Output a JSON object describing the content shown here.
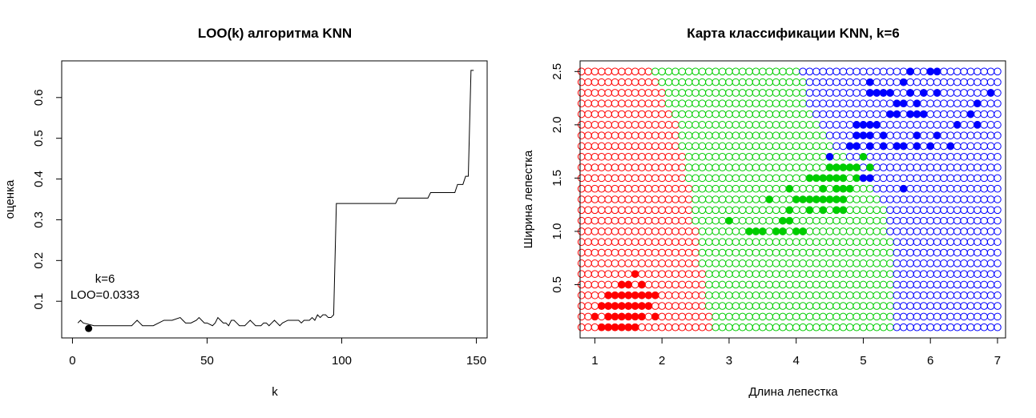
{
  "chart_data": [
    {
      "type": "line",
      "title": "LOO(k) алгоритма KNN",
      "xlabel": "k",
      "ylabel": "оценка",
      "xlim": [
        -4,
        154
      ],
      "ylim": [
        0.01,
        0.69
      ],
      "xticks": [
        0,
        50,
        100,
        150
      ],
      "xtick_labels": [
        "0",
        "50",
        "100",
        "150"
      ],
      "yticks": [
        0.1,
        0.2,
        0.3,
        0.4,
        0.5,
        0.6
      ],
      "ytick_labels": [
        "0.1",
        "0.2",
        "0.3",
        "0.4",
        "0.5",
        "0.6"
      ],
      "grid": false,
      "series": [
        {
          "x": [
            2,
            3,
            4,
            8,
            20,
            22,
            23,
            24,
            25,
            26,
            27,
            30,
            34,
            35,
            36,
            37,
            40,
            41,
            42,
            44,
            46,
            47,
            48,
            49,
            50,
            52,
            53,
            54,
            55,
            56,
            57,
            58,
            59,
            60,
            61,
            62,
            64,
            65,
            66,
            67,
            68,
            70,
            71,
            72,
            73,
            74,
            75,
            76,
            77,
            78,
            80,
            82,
            84,
            85,
            86,
            88,
            89,
            90,
            91,
            92,
            93,
            94,
            95,
            96,
            97,
            98,
            110,
            120,
            121,
            132,
            133,
            142,
            143,
            145,
            146,
            147,
            148,
            149
          ],
          "y": [
            0.0467,
            0.0533,
            0.0467,
            0.04,
            0.04,
            0.04,
            0.0467,
            0.0533,
            0.0467,
            0.04,
            0.04,
            0.04,
            0.0533,
            0.0533,
            0.0533,
            0.0533,
            0.06,
            0.0533,
            0.0467,
            0.0467,
            0.0533,
            0.06,
            0.0533,
            0.0467,
            0.0467,
            0.04,
            0.0467,
            0.06,
            0.0533,
            0.0467,
            0.0467,
            0.04,
            0.0533,
            0.0533,
            0.0467,
            0.04,
            0.04,
            0.0467,
            0.0533,
            0.0467,
            0.04,
            0.04,
            0.0467,
            0.0467,
            0.04,
            0.0467,
            0.0533,
            0.0467,
            0.04,
            0.0467,
            0.0533,
            0.0533,
            0.0533,
            0.0467,
            0.0533,
            0.0533,
            0.06,
            0.0533,
            0.0667,
            0.06,
            0.0667,
            0.0667,
            0.06,
            0.06,
            0.0667,
            0.34,
            0.34,
            0.34,
            0.3533,
            0.3533,
            0.3667,
            0.3667,
            0.3867,
            0.3867,
            0.4067,
            0.4067,
            0.6667,
            0.6667
          ]
        }
      ],
      "marker": {
        "x": 6,
        "y": 0.0333
      },
      "annotation": [
        "k=6",
        "LOO=0.0333"
      ]
    },
    {
      "type": "scatter",
      "title": "Карта классификации KNN, k=6",
      "xlabel": "Длина лепестка",
      "ylabel": "Ширина лепестка",
      "xlim": [
        0.78,
        7.12
      ],
      "ylim": [
        -0.0,
        2.6
      ],
      "xticks": [
        1,
        2,
        3,
        4,
        5,
        6,
        7
      ],
      "xtick_labels": [
        "1",
        "2",
        "3",
        "4",
        "5",
        "6",
        "7"
      ],
      "yticks": [
        0.5,
        1.0,
        1.5,
        2.0,
        2.5
      ],
      "ytick_labels": [
        "0.5",
        "1.0",
        "1.5",
        "2.0",
        "2.5"
      ],
      "grid": false,
      "legend": "none",
      "colors": {
        "setosa": "#ff0000",
        "versicolor": "#00cd00",
        "virginica": "#0000ff"
      },
      "classification_grid": {
        "x_start": 0.8,
        "x_step": 0.1,
        "x_count": 63,
        "y_start": 0.1,
        "y_step": 0.1,
        "y_count": 25,
        "setosa_until_x": [
          2.7,
          2.7,
          2.6,
          2.6,
          2.6,
          2.6,
          2.5,
          2.5,
          2.5,
          2.5,
          2.4,
          2.4,
          2.4,
          2.4,
          2.3,
          2.3,
          2.3,
          2.2,
          2.2,
          2.2,
          2.1,
          2.0,
          2.0,
          1.9,
          1.8
        ],
        "versicolor_until_x": [
          5.4,
          5.4,
          5.4,
          5.4,
          5.4,
          5.4,
          5.4,
          5.4,
          5.4,
          5.3,
          5.3,
          5.3,
          5.2,
          5.1,
          5.0,
          4.9,
          4.7,
          4.5,
          4.4,
          4.3,
          4.2,
          4.1,
          4.1,
          4.1,
          4.0
        ]
      },
      "observations": {
        "setosa": [
          [
            1.4,
            0.2
          ],
          [
            1.3,
            0.2
          ],
          [
            1.5,
            0.2
          ],
          [
            1.7,
            0.4
          ],
          [
            1.4,
            0.3
          ],
          [
            1.5,
            0.1
          ],
          [
            1.1,
            0.1
          ],
          [
            1.2,
            0.2
          ],
          [
            1.6,
            0.2
          ],
          [
            1.9,
            0.4
          ],
          [
            1.0,
            0.2
          ],
          [
            1.7,
            0.5
          ],
          [
            1.6,
            0.6
          ],
          [
            1.4,
            0.1
          ],
          [
            1.6,
            0.4
          ],
          [
            1.5,
            0.4
          ],
          [
            1.3,
            0.3
          ],
          [
            1.3,
            0.4
          ],
          [
            1.9,
            0.2
          ],
          [
            1.6,
            0.3
          ],
          [
            1.2,
            0.3
          ],
          [
            1.5,
            0.3
          ],
          [
            1.4,
            0.4
          ],
          [
            1.7,
            0.3
          ],
          [
            1.4,
            0.5
          ],
          [
            1.3,
            0.1
          ],
          [
            1.6,
            0.1
          ],
          [
            1.5,
            0.5
          ],
          [
            1.2,
            0.4
          ],
          [
            1.7,
            0.2
          ],
          [
            1.8,
            0.3
          ],
          [
            1.1,
            0.3
          ],
          [
            1.2,
            0.1
          ],
          [
            1.8,
            0.4
          ]
        ],
        "versicolor": [
          [
            4.7,
            1.4
          ],
          [
            4.5,
            1.5
          ],
          [
            4.9,
            1.5
          ],
          [
            4.0,
            1.3
          ],
          [
            4.6,
            1.5
          ],
          [
            3.3,
            1.0
          ],
          [
            4.6,
            1.3
          ],
          [
            3.9,
            1.4
          ],
          [
            3.5,
            1.0
          ],
          [
            4.2,
            1.5
          ],
          [
            4.0,
            1.0
          ],
          [
            4.7,
            1.6
          ],
          [
            3.6,
            1.3
          ],
          [
            4.4,
            1.4
          ],
          [
            4.5,
            1.3
          ],
          [
            4.1,
            1.0
          ],
          [
            4.8,
            1.8
          ],
          [
            4.0,
            1.3
          ],
          [
            4.9,
            1.6
          ],
          [
            4.3,
            1.3
          ],
          [
            4.4,
            1.3
          ],
          [
            4.8,
            1.4
          ],
          [
            5.0,
            1.7
          ],
          [
            3.8,
            1.1
          ],
          [
            3.7,
            1.0
          ],
          [
            3.9,
            1.2
          ],
          [
            5.1,
            1.6
          ],
          [
            4.5,
            1.6
          ],
          [
            4.1,
            1.3
          ],
          [
            4.2,
            1.3
          ],
          [
            4.4,
            1.2
          ],
          [
            4.6,
            1.4
          ],
          [
            3.0,
            1.1
          ],
          [
            4.2,
            1.2
          ],
          [
            4.3,
            1.3
          ],
          [
            3.9,
            1.1
          ],
          [
            3.8,
            1.0
          ],
          [
            4.1,
            1.0
          ],
          [
            3.4,
            1.0
          ],
          [
            4.6,
            1.6
          ],
          [
            4.7,
            1.5
          ],
          [
            4.4,
            1.5
          ],
          [
            4.8,
            1.6
          ],
          [
            4.7,
            1.3
          ],
          [
            4.3,
            1.5
          ],
          [
            4.6,
            1.2
          ],
          [
            4.7,
            1.2
          ]
        ],
        "virginica": [
          [
            6.0,
            2.5
          ],
          [
            5.1,
            1.9
          ],
          [
            5.9,
            2.1
          ],
          [
            5.6,
            1.8
          ],
          [
            5.8,
            2.2
          ],
          [
            6.6,
            2.1
          ],
          [
            4.5,
            1.7
          ],
          [
            6.3,
            1.8
          ],
          [
            5.8,
            1.8
          ],
          [
            6.1,
            2.5
          ],
          [
            5.1,
            2.0
          ],
          [
            5.3,
            1.9
          ],
          [
            5.5,
            2.1
          ],
          [
            5.0,
            2.0
          ],
          [
            5.1,
            2.4
          ],
          [
            5.3,
            2.3
          ],
          [
            5.5,
            1.8
          ],
          [
            6.7,
            2.2
          ],
          [
            6.9,
            2.3
          ],
          [
            5.0,
            1.5
          ],
          [
            5.7,
            2.3
          ],
          [
            4.9,
            2.0
          ],
          [
            6.7,
            2.0
          ],
          [
            4.9,
            1.8
          ],
          [
            5.7,
            2.1
          ],
          [
            6.0,
            1.8
          ],
          [
            4.8,
            1.8
          ],
          [
            6.1,
            1.9
          ],
          [
            6.4,
            2.0
          ],
          [
            5.6,
            2.2
          ],
          [
            5.1,
            1.5
          ],
          [
            5.6,
            1.4
          ],
          [
            6.1,
            2.3
          ],
          [
            5.6,
            2.4
          ],
          [
            5.5,
            1.8
          ],
          [
            5.4,
            2.1
          ],
          [
            5.6,
            2.4
          ],
          [
            5.1,
            2.3
          ],
          [
            5.9,
            2.3
          ],
          [
            5.7,
            2.5
          ],
          [
            5.2,
            2.3
          ],
          [
            5.0,
            1.9
          ],
          [
            5.2,
            2.0
          ],
          [
            5.4,
            2.3
          ],
          [
            5.1,
            1.8
          ],
          [
            5.8,
            1.9
          ],
          [
            5.3,
            1.8
          ],
          [
            4.9,
            1.9
          ],
          [
            5.8,
            2.1
          ],
          [
            5.5,
            2.2
          ]
        ]
      }
    }
  ]
}
